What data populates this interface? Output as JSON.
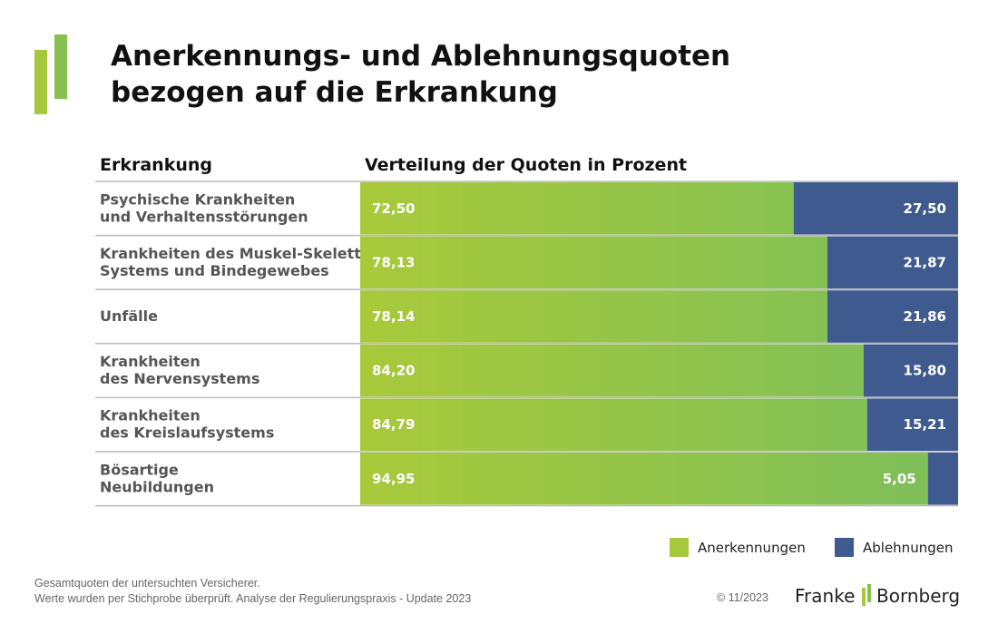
{
  "chart_data": {
    "type": "stacked-bar-horizontal",
    "title": "Anerkennungs- und Ablehnungsquoten\nbezogen auf die Erkrankung",
    "category_header": "Erkrankung",
    "value_header": "Verteilung der Quoten in Prozent",
    "categories": [
      "Psychische Krankheiten\nund Verhaltensstörungen",
      "Krankheiten des Muskel-Skelett-\nSystems und Bindegewebes",
      "Unfälle",
      "Krankheiten\ndes Nervensystems",
      "Krankheiten\ndes Kreislaufsystems",
      "Bösartige\nNeubildungen"
    ],
    "series": [
      {
        "name": "Anerkennungen",
        "color": "#a6c83c",
        "values": [
          72.5,
          78.13,
          78.14,
          84.2,
          84.79,
          94.95
        ],
        "value_labels": [
          "72,50",
          "78,13",
          "78,14",
          "84,20",
          "84,79",
          "94,95"
        ]
      },
      {
        "name": "Ablehnungen",
        "color": "#3e5a8f",
        "values": [
          27.5,
          21.87,
          21.86,
          15.8,
          15.21,
          5.05
        ],
        "value_labels": [
          "27,50",
          "21,87",
          "21,86",
          "15,80",
          "15,21",
          "5,05"
        ]
      }
    ],
    "xlim": [
      0,
      100
    ],
    "notes": [
      "Gesamtquoten der untersuchten Versicherer.",
      "Werte wurden per Stichprobe überprüft. Analyse der Regulierungspraxis - Update 2023"
    ],
    "copyright": "© 11/2023",
    "brand": [
      "Franke",
      "Bornberg"
    ]
  }
}
